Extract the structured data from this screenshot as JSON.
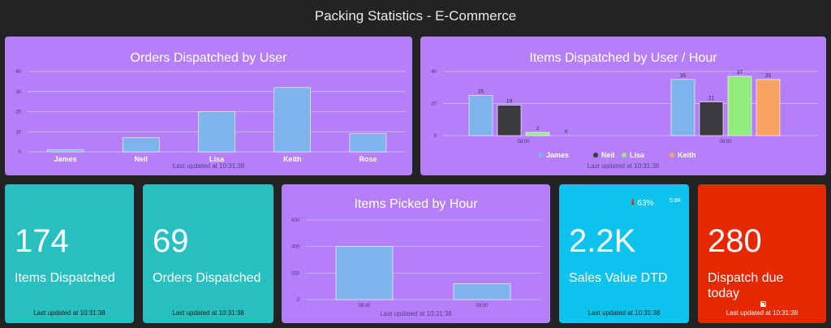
{
  "dashboard": {
    "title": "Packing Statistics - E-Commerce"
  },
  "colors": {
    "bg": "#232323",
    "tile_purple": "#b57ffa",
    "tile_teal": "#27bfbf",
    "tile_cyan": "#0dc2ed",
    "tile_red": "#e62800",
    "bar_blue": "#7db4ec",
    "bar_black": "#3b3b3f",
    "bar_green": "#92ec7b",
    "bar_orange": "#f8a360"
  },
  "tiles": {
    "orders_by_user": {
      "title": "Orders Dispatched by User",
      "updated": "Last updated at 10:31:38"
    },
    "items_by_user_hour": {
      "title": "Items Dispatched by User / Hour",
      "updated": "Last updated at 10:31:38"
    },
    "items_dispatched": {
      "value": "174",
      "label": "Items Dispatched",
      "updated": "Last updated at 10:31:38"
    },
    "orders_dispatched": {
      "value": "69",
      "label": "Orders Dispatched",
      "updated": "Last updated at 10:31:38"
    },
    "items_picked_by_hour": {
      "title": "Items Picked by Hour",
      "updated": "Last updated at 10:31:38"
    },
    "sales_value": {
      "value": "2.2K",
      "label": "Sales Value DTD",
      "trend": "63%",
      "trend_direction": "down",
      "comparison": "5.8K",
      "updated": "Last updated at 10:31:38"
    },
    "dispatch_due": {
      "value": "280",
      "label": "Dispatch due today",
      "updated": "Last updated at 10:31:38",
      "icon": "external-link-icon"
    }
  },
  "chart_data": [
    {
      "id": "orders_by_user",
      "type": "bar",
      "categories": [
        "James",
        "Neil",
        "Lisa",
        "Keith",
        "Rose"
      ],
      "values": [
        1,
        7,
        20,
        32,
        9
      ],
      "ylim": [
        0,
        40
      ],
      "yticks": [
        0,
        10,
        20,
        30,
        40
      ],
      "ytick_labels": [
        "0",
        "10",
        "20",
        "30",
        "40"
      ],
      "grid": true
    },
    {
      "id": "items_by_user_hour",
      "type": "bar",
      "categories": [
        "08:00",
        "09:00"
      ],
      "series": [
        {
          "name": "James",
          "values": [
            25,
            35
          ]
        },
        {
          "name": "Neil",
          "values": [
            19,
            21
          ]
        },
        {
          "name": "Lisa",
          "values": [
            2,
            37
          ]
        },
        {
          "name": "Keith",
          "values": [
            0,
            35
          ]
        }
      ],
      "ylim": [
        0,
        40
      ],
      "yticks": [
        0,
        20,
        40
      ],
      "ytick_labels": [
        "0",
        "20",
        "40"
      ],
      "legend": "bottom",
      "data_labels": true,
      "grid": true
    },
    {
      "id": "items_picked_by_hour",
      "type": "bar",
      "categories": [
        "08:00",
        "09:00"
      ],
      "values": [
        400,
        120
      ],
      "ylim": [
        0,
        600
      ],
      "yticks": [
        0,
        200,
        400,
        600
      ],
      "ytick_labels": [
        "0",
        "200",
        "400",
        "600"
      ],
      "grid": true
    }
  ]
}
